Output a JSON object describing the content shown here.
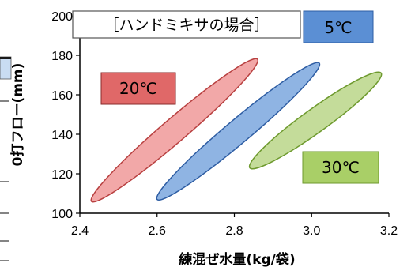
{
  "chart_data": {
    "type": "scatter",
    "title": "［ハンドミキサの場合］",
    "xlabel": "練混ぜ水量(kg/袋)",
    "ylabel": "0打フロー(mm)",
    "xlim": [
      2.4,
      3.2
    ],
    "ylim": [
      100,
      200
    ],
    "xticks": [
      "2.4",
      "2.6",
      "2.8",
      "3.0",
      "3.2"
    ],
    "yticks": [
      "100",
      "120",
      "140",
      "160",
      "180",
      "200"
    ],
    "grid": false,
    "series": [
      {
        "name": "20℃",
        "color": "#f2a8a8",
        "edge": "#b84040",
        "range_start": [
          2.43,
          106
        ],
        "range_end": [
          2.86,
          178
        ]
      },
      {
        "name": "5℃",
        "color": "#8fb4e3",
        "edge": "#2e5da3",
        "range_start": [
          2.6,
          107
        ],
        "range_end": [
          3.02,
          176
        ]
      },
      {
        "name": "30℃",
        "color": "#c4dc9a",
        "edge": "#6e9a2e",
        "range_start": [
          2.84,
          123
        ],
        "range_end": [
          3.18,
          171
        ]
      }
    ]
  }
}
